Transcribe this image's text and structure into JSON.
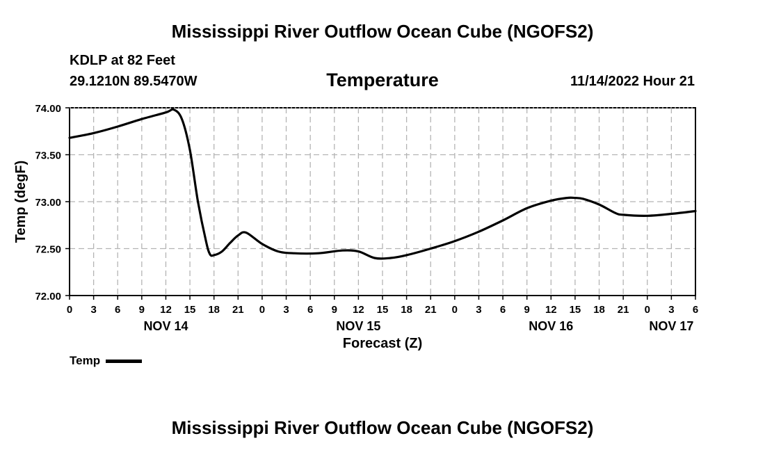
{
  "header": {
    "title_top": "Mississippi River Outflow Ocean Cube (NGOFS2)",
    "title_bottom": "Mississippi River Outflow Ocean Cube (NGOFS2)",
    "station": "KDLP at 82 Feet",
    "coords": "29.1210N  89.5470W",
    "variable": "Temperature",
    "datetime": "11/14/2022 Hour 21"
  },
  "legend": {
    "label": "Temp",
    "color": "#000000"
  },
  "chart_data": {
    "type": "line",
    "title": "Temperature",
    "xlabel": "Forecast (Z)",
    "ylabel": "Temp (degF)",
    "ylim": [
      72.0,
      74.0
    ],
    "xlim_hours": [
      0,
      78
    ],
    "grid": true,
    "y_ticks": [
      "72.00",
      "72.50",
      "73.00",
      "73.50",
      "74.00"
    ],
    "y_tick_values": [
      72.0,
      72.5,
      73.0,
      73.5,
      74.0
    ],
    "x_ticks": [
      "0",
      "3",
      "6",
      "9",
      "12",
      "15",
      "18",
      "21",
      "0",
      "3",
      "6",
      "9",
      "12",
      "15",
      "18",
      "21",
      "0",
      "3",
      "6",
      "9",
      "12",
      "15",
      "18",
      "21",
      "0",
      "3",
      "6"
    ],
    "date_labels": [
      {
        "label": "NOV 14",
        "hour": 12
      },
      {
        "label": "NOV 15",
        "hour": 36
      },
      {
        "label": "NOV 16",
        "hour": 60
      },
      {
        "label": "NOV 17",
        "hour": 75
      }
    ],
    "series": [
      {
        "name": "Temp",
        "x_hours": [
          0,
          3,
          6,
          9,
          12,
          13,
          14,
          15,
          16,
          17,
          17.5,
          18,
          19,
          20,
          21,
          22,
          24,
          26,
          28,
          31,
          34,
          36,
          38,
          40,
          42,
          45,
          48,
          51,
          54,
          57,
          60,
          62,
          63,
          64,
          66,
          68,
          69,
          72,
          75,
          78
        ],
        "values": [
          73.68,
          73.73,
          73.8,
          73.88,
          73.95,
          73.98,
          73.88,
          73.55,
          73.0,
          72.58,
          72.44,
          72.43,
          72.47,
          72.56,
          72.64,
          72.67,
          72.55,
          72.47,
          72.45,
          72.45,
          72.48,
          72.47,
          72.4,
          72.4,
          72.43,
          72.5,
          72.58,
          72.68,
          72.8,
          72.93,
          73.01,
          73.04,
          73.04,
          73.03,
          72.97,
          72.88,
          72.86,
          72.85,
          72.87,
          72.9
        ]
      }
    ]
  }
}
